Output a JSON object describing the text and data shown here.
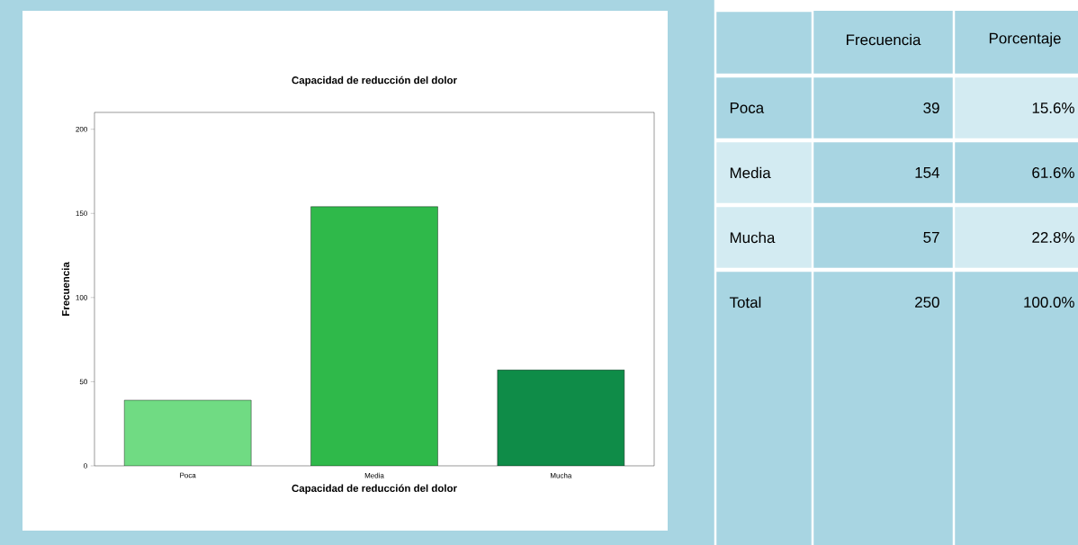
{
  "chart_data": [
    {
      "type": "bar",
      "title": "Capacidad de reducción del dolor",
      "xlabel": "Capacidad de reducción del dolor",
      "ylabel": "Frecuencia",
      "categories": [
        "Poca",
        "Media",
        "Mucha"
      ],
      "values": [
        39,
        154,
        57
      ],
      "colors": [
        "#70db83",
        "#2fb94a",
        "#0f8c48"
      ],
      "ylim": [
        0,
        210
      ],
      "yticks": [
        0,
        50,
        100,
        150,
        200
      ],
      "grid": false
    },
    {
      "type": "other",
      "categories": [
        "Poca",
        "Media",
        "Mucha",
        "Total"
      ],
      "data_labels": true,
      "series": [
        {
          "name": "Frecuencia",
          "color": "#a8d5e2",
          "values": [
            39,
            154,
            57,
            250
          ]
        },
        {
          "name": "Porcentaje",
          "colors": [
            "#d3ebf2",
            "#a8d5e2",
            "#d3ebf2",
            "#a8d5e2"
          ],
          "values": [
            15.6,
            61.6,
            22.8,
            100.0
          ],
          "value_labels": [
            "15.6%",
            "61.6%",
            "22.8%",
            "100.0%"
          ]
        }
      ]
    }
  ]
}
